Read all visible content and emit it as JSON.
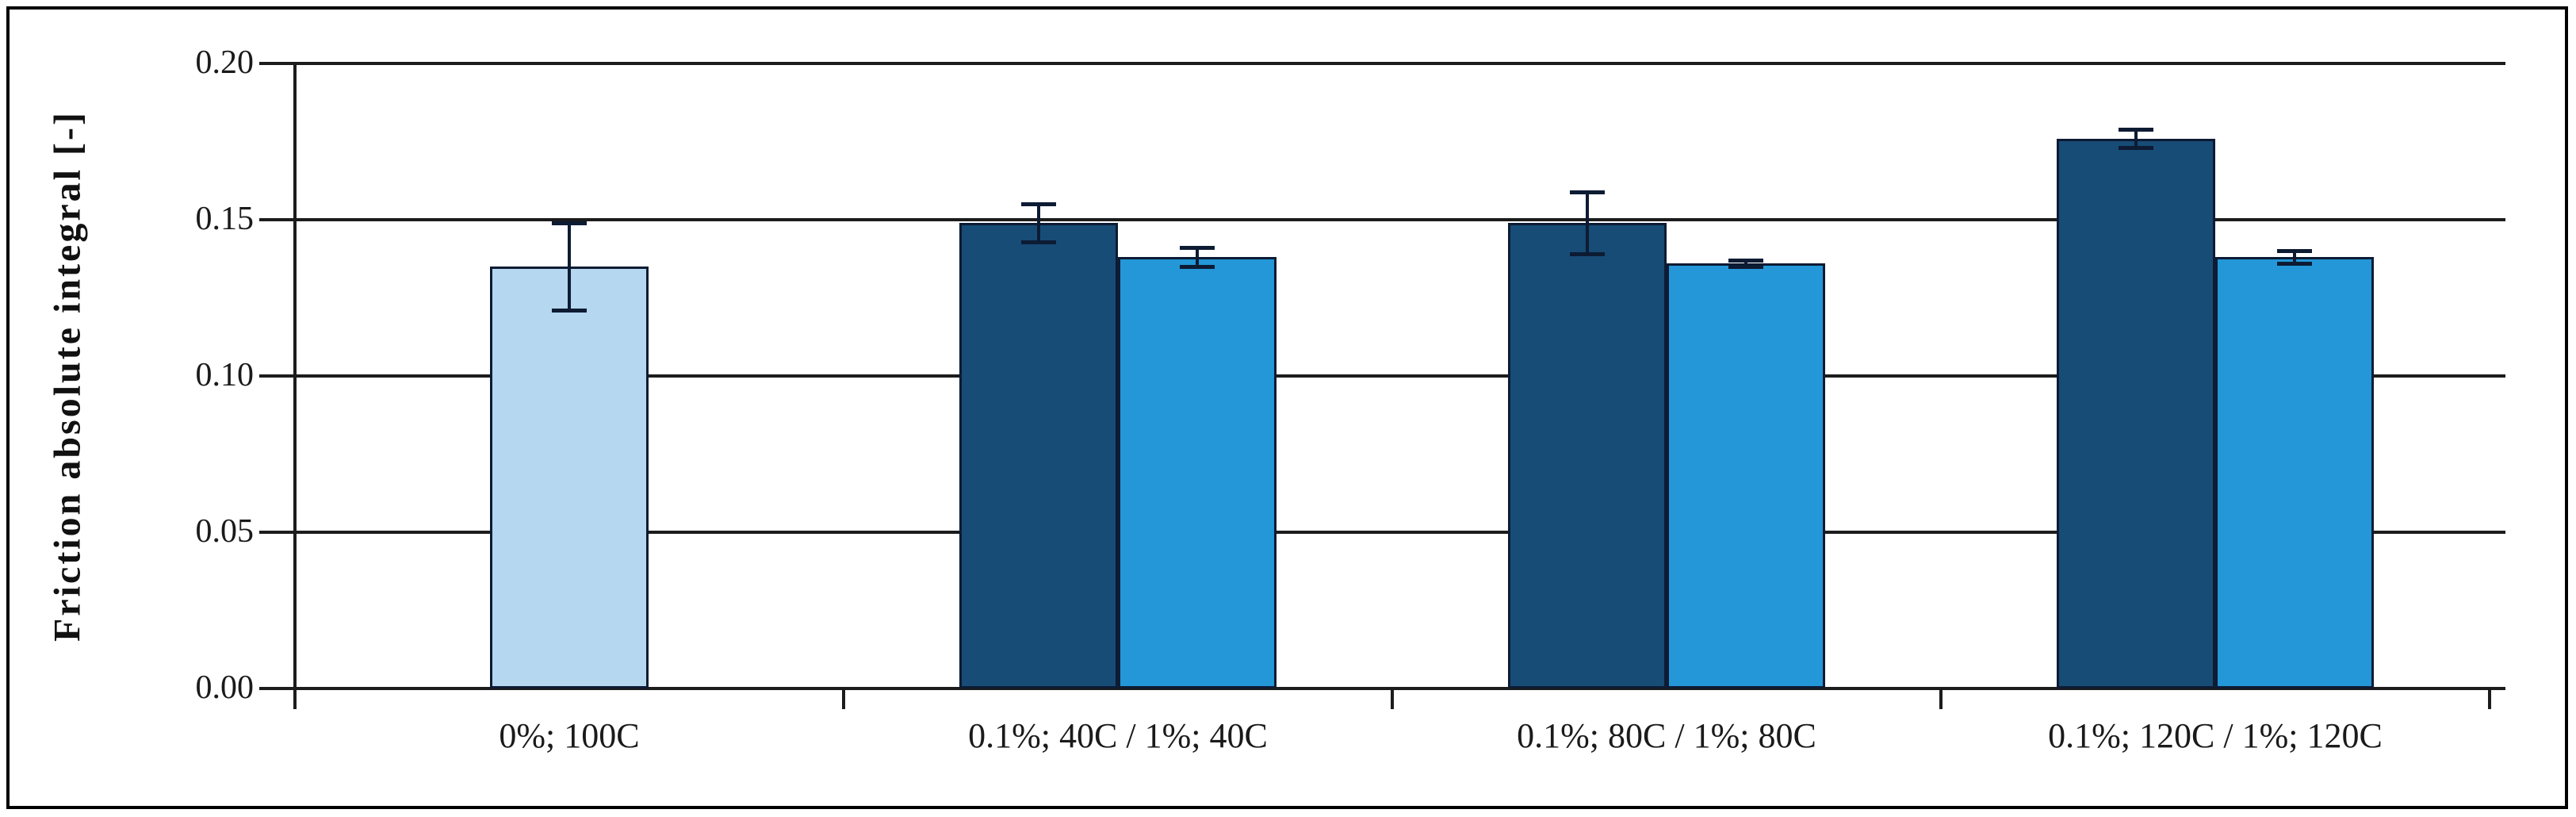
{
  "figure": {
    "background": "#ffffff",
    "border_color": "#000000"
  },
  "y_axis": {
    "title": "Friction absolute integral [-]",
    "ticks": [
      {
        "label": "0.20",
        "value": 0.2
      },
      {
        "label": "0.15",
        "value": 0.15
      },
      {
        "label": "0.10",
        "value": 0.1
      },
      {
        "label": "0.05",
        "value": 0.05
      },
      {
        "label": "0.00",
        "value": 0.0
      }
    ]
  },
  "chart_data": {
    "type": "bar",
    "title": "",
    "xlabel": "",
    "ylabel": "Friction absolute integral [-]",
    "ylim": [
      0.0,
      0.2
    ],
    "ytick_step": 0.05,
    "grid": true,
    "legend_position": "none",
    "error_bars": true,
    "categories": [
      "0%; 100C",
      "0.1%; 40C / 1%; 40C",
      "0.1%; 80C / 1%; 80C",
      "0.1%; 120C / 1%; 120C"
    ],
    "colors": {
      "pale": "#B5D7F0",
      "dark": "#174C76",
      "medium": "#2397D8"
    },
    "groups": [
      {
        "label": "0%; 100C",
        "bars": [
          {
            "name": "0%; 100C",
            "color_key": "pale",
            "value": 0.135,
            "error": 0.014
          }
        ]
      },
      {
        "label": "0.1%; 40C / 1%; 40C",
        "bars": [
          {
            "name": "0.1%; 40C",
            "color_key": "dark",
            "value": 0.149,
            "error": 0.006
          },
          {
            "name": "1%; 40C",
            "color_key": "medium",
            "value": 0.138,
            "error": 0.003
          }
        ]
      },
      {
        "label": "0.1%; 80C / 1%; 80C",
        "bars": [
          {
            "name": "0.1%; 80C",
            "color_key": "dark",
            "value": 0.149,
            "error": 0.01
          },
          {
            "name": "1%; 80C",
            "color_key": "medium",
            "value": 0.136,
            "error": 0.001
          }
        ]
      },
      {
        "label": "0.1%; 120C / 1%; 120C",
        "bars": [
          {
            "name": "0.1%; 120C",
            "color_key": "dark",
            "value": 0.176,
            "error": 0.003
          },
          {
            "name": "1%; 120C",
            "color_key": "medium",
            "value": 0.138,
            "error": 0.002
          }
        ]
      }
    ]
  }
}
